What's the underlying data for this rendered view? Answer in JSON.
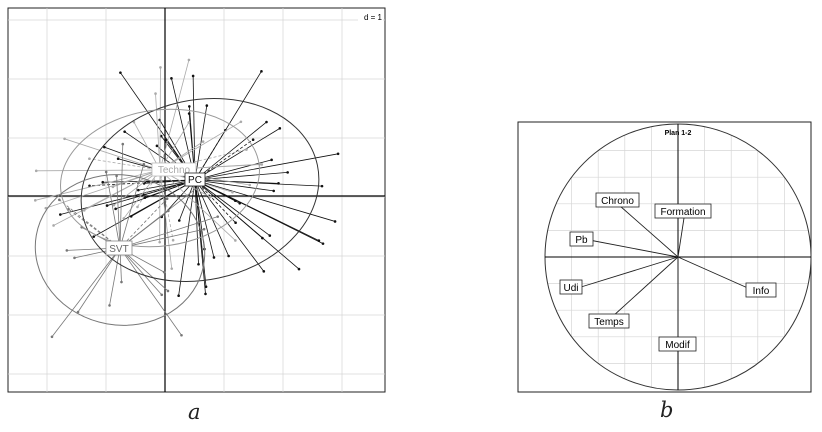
{
  "panel_a": {
    "scale_label": "d = 1",
    "group_labels": [
      "Techno",
      "PC",
      "SVT"
    ],
    "caption": "a"
  },
  "panel_b": {
    "title": "Plan 1-2",
    "variables": [
      "Chrono",
      "Formation",
      "Pb",
      "Udi",
      "Info",
      "Temps",
      "Modif"
    ],
    "caption": "b"
  },
  "colors": {
    "axis": "#000000",
    "grid": "#cfcfcf",
    "primary": "#111111",
    "secondary": "#9a9a9a"
  }
}
